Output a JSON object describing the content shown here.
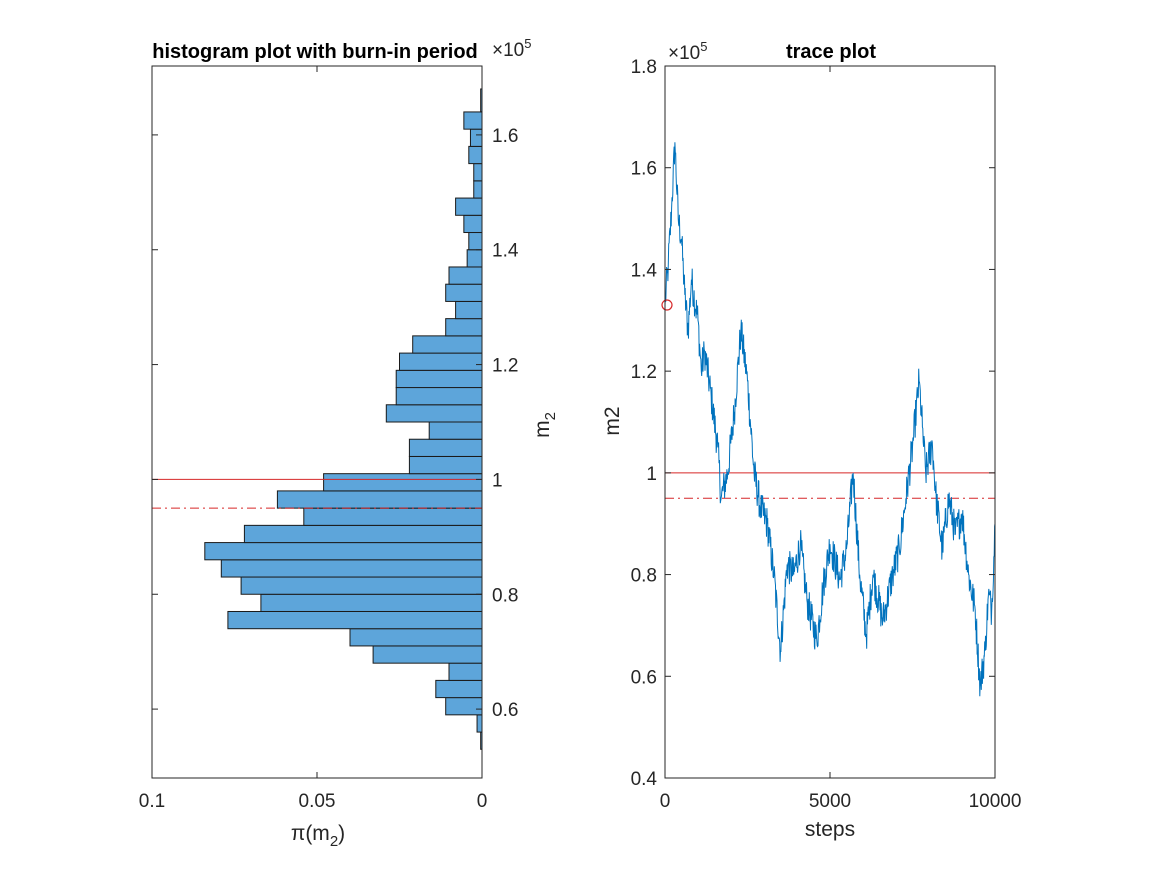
{
  "chart_data": [
    {
      "type": "bar",
      "orientation": "horizontal",
      "title": "histogram plot with burn-in period",
      "xlabel": "π(m₂)",
      "xlabel_parts": {
        "base": "π(m",
        "sub": "2",
        "end": ")"
      },
      "ylabel_parts": {
        "base": "m",
        "sub": "2"
      },
      "x_reversed": true,
      "xlim": [
        0,
        0.1
      ],
      "ylim": [
        48000,
        172000
      ],
      "y_axis_location": "right",
      "x_ticks": [
        {
          "value": 0.1,
          "label": "0.1"
        },
        {
          "value": 0.05,
          "label": "0.05"
        },
        {
          "value": 0,
          "label": "0"
        }
      ],
      "y_ticks": [
        {
          "value": 60000,
          "label": "0.6"
        },
        {
          "value": 80000,
          "label": "0.8"
        },
        {
          "value": 100000,
          "label": "1"
        },
        {
          "value": 120000,
          "label": "1.2"
        },
        {
          "value": 140000,
          "label": "1.4"
        },
        {
          "value": 160000,
          "label": "1.6"
        }
      ],
      "y_exponent": {
        "base": "×10",
        "power": "5"
      },
      "bins": [
        {
          "lo": 53000,
          "hi": 56000,
          "density": 0.0004
        },
        {
          "lo": 56000,
          "hi": 59000,
          "density": 0.0015
        },
        {
          "lo": 59000,
          "hi": 62000,
          "density": 0.011
        },
        {
          "lo": 62000,
          "hi": 65000,
          "density": 0.014
        },
        {
          "lo": 65000,
          "hi": 68000,
          "density": 0.01
        },
        {
          "lo": 68000,
          "hi": 71000,
          "density": 0.033
        },
        {
          "lo": 71000,
          "hi": 74000,
          "density": 0.04
        },
        {
          "lo": 74000,
          "hi": 77000,
          "density": 0.077
        },
        {
          "lo": 77000,
          "hi": 80000,
          "density": 0.067
        },
        {
          "lo": 80000,
          "hi": 83000,
          "density": 0.073
        },
        {
          "lo": 83000,
          "hi": 86000,
          "density": 0.079
        },
        {
          "lo": 86000,
          "hi": 89000,
          "density": 0.084
        },
        {
          "lo": 89000,
          "hi": 92000,
          "density": 0.072
        },
        {
          "lo": 92000,
          "hi": 95000,
          "density": 0.054
        },
        {
          "lo": 95000,
          "hi": 98000,
          "density": 0.062
        },
        {
          "lo": 98000,
          "hi": 101000,
          "density": 0.048
        },
        {
          "lo": 101000,
          "hi": 104000,
          "density": 0.022
        },
        {
          "lo": 104000,
          "hi": 107000,
          "density": 0.022
        },
        {
          "lo": 107000,
          "hi": 110000,
          "density": 0.016
        },
        {
          "lo": 110000,
          "hi": 113000,
          "density": 0.029
        },
        {
          "lo": 113000,
          "hi": 116000,
          "density": 0.026
        },
        {
          "lo": 116000,
          "hi": 119000,
          "density": 0.026
        },
        {
          "lo": 119000,
          "hi": 122000,
          "density": 0.025
        },
        {
          "lo": 122000,
          "hi": 125000,
          "density": 0.021
        },
        {
          "lo": 125000,
          "hi": 128000,
          "density": 0.011
        },
        {
          "lo": 128000,
          "hi": 131000,
          "density": 0.008
        },
        {
          "lo": 131000,
          "hi": 134000,
          "density": 0.011
        },
        {
          "lo": 134000,
          "hi": 137000,
          "density": 0.01
        },
        {
          "lo": 137000,
          "hi": 140000,
          "density": 0.0045
        },
        {
          "lo": 140000,
          "hi": 143000,
          "density": 0.004
        },
        {
          "lo": 143000,
          "hi": 146000,
          "density": 0.0055
        },
        {
          "lo": 146000,
          "hi": 149000,
          "density": 0.008
        },
        {
          "lo": 149000,
          "hi": 152000,
          "density": 0.0025
        },
        {
          "lo": 152000,
          "hi": 155000,
          "density": 0.0025
        },
        {
          "lo": 155000,
          "hi": 158000,
          "density": 0.004
        },
        {
          "lo": 158000,
          "hi": 161000,
          "density": 0.0035
        },
        {
          "lo": 161000,
          "hi": 164000,
          "density": 0.0055
        },
        {
          "lo": 164000,
          "hi": 168000,
          "density": 0.0004
        }
      ],
      "reference_lines": [
        {
          "value": 100000,
          "style": "solid",
          "color": "#d62728"
        },
        {
          "value": 95000,
          "style": "dashdot",
          "color": "#d62728"
        }
      ],
      "colors": {
        "bar_fill": "#5da5da",
        "bar_edge": "#1a1a1a",
        "axis": "#262626"
      }
    },
    {
      "type": "line",
      "title": "trace plot",
      "xlabel": "steps",
      "ylabel": "m2",
      "xlim": [
        0,
        10000
      ],
      "ylim": [
        40000,
        180000
      ],
      "x_ticks": [
        {
          "value": 0,
          "label": "0"
        },
        {
          "value": 5000,
          "label": "5000"
        },
        {
          "value": 10000,
          "label": "10000"
        }
      ],
      "y_ticks": [
        {
          "value": 40000,
          "label": "0.4"
        },
        {
          "value": 60000,
          "label": "0.6"
        },
        {
          "value": 80000,
          "label": "0.8"
        },
        {
          "value": 100000,
          "label": "1"
        },
        {
          "value": 120000,
          "label": "1.2"
        },
        {
          "value": 140000,
          "label": "1.4"
        },
        {
          "value": 160000,
          "label": "1.6"
        },
        {
          "value": 180000,
          "label": "1.8"
        }
      ],
      "y_exponent": {
        "base": "×10",
        "power": "5"
      },
      "trace_anchors": [
        [
          0,
          133000
        ],
        [
          100,
          141000
        ],
        [
          200,
          152000
        ],
        [
          300,
          165000
        ],
        [
          400,
          150000
        ],
        [
          500,
          146000
        ],
        [
          600,
          135000
        ],
        [
          700,
          128000
        ],
        [
          800,
          138000
        ],
        [
          1000,
          130000
        ],
        [
          1100,
          120000
        ],
        [
          1200,
          124000
        ],
        [
          1400,
          115000
        ],
        [
          1600,
          105000
        ],
        [
          1700,
          95000
        ],
        [
          1900,
          100000
        ],
        [
          2100,
          112000
        ],
        [
          2300,
          128000
        ],
        [
          2500,
          118000
        ],
        [
          2700,
          100000
        ],
        [
          2900,
          93000
        ],
        [
          3100,
          90000
        ],
        [
          3300,
          80000
        ],
        [
          3500,
          65000
        ],
        [
          3700,
          82000
        ],
        [
          3900,
          80000
        ],
        [
          4100,
          86000
        ],
        [
          4300,
          75000
        ],
        [
          4600,
          67000
        ],
        [
          4800,
          78000
        ],
        [
          5000,
          86000
        ],
        [
          5300,
          79000
        ],
        [
          5500,
          85000
        ],
        [
          5700,
          100000
        ],
        [
          5900,
          80000
        ],
        [
          6100,
          68000
        ],
        [
          6300,
          80000
        ],
        [
          6600,
          71000
        ],
        [
          6900,
          80000
        ],
        [
          7100,
          85000
        ],
        [
          7300,
          95000
        ],
        [
          7500,
          105000
        ],
        [
          7700,
          118000
        ],
        [
          7800,
          109000
        ],
        [
          7900,
          100000
        ],
        [
          8100,
          106000
        ],
        [
          8200,
          96000
        ],
        [
          8400,
          85000
        ],
        [
          8600,
          95000
        ],
        [
          8800,
          88000
        ],
        [
          9000,
          92000
        ],
        [
          9200,
          80000
        ],
        [
          9400,
          73000
        ],
        [
          9550,
          58000
        ],
        [
          9700,
          65000
        ],
        [
          9800,
          76000
        ],
        [
          9900,
          73000
        ],
        [
          10000,
          90000
        ]
      ],
      "start_marker": {
        "x": 0,
        "y": 133000,
        "shape": "circle"
      },
      "reference_lines": [
        {
          "value": 100000,
          "style": "solid",
          "color": "#d62728"
        },
        {
          "value": 95000,
          "style": "dashdot",
          "color": "#d62728"
        }
      ],
      "colors": {
        "line": "#0072bd",
        "marker": "#d62728",
        "axis": "#262626"
      }
    }
  ]
}
